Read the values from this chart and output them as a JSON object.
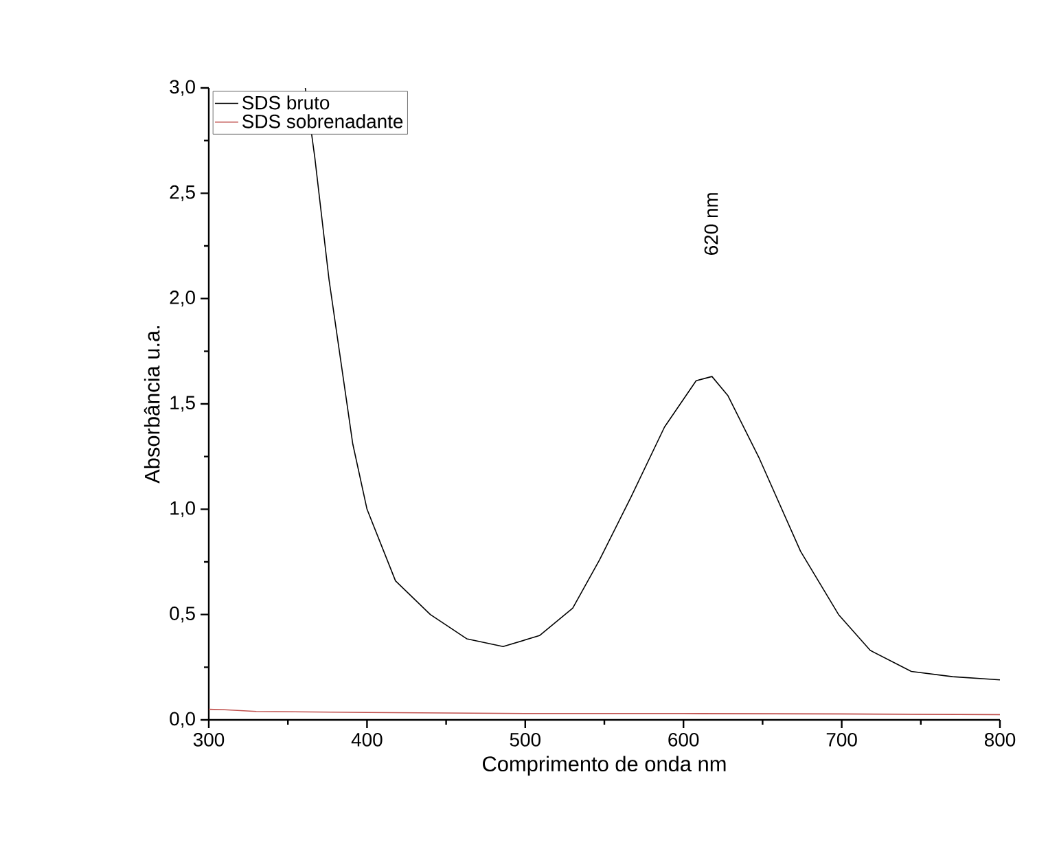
{
  "chart_data": {
    "type": "line",
    "xlabel": "Comprimento de onda  nm",
    "ylabel": "Absorbância  u.a.",
    "xlim": [
      300,
      800
    ],
    "xticks": [
      300,
      400,
      500,
      600,
      700,
      800
    ],
    "ylim": [
      0,
      3.0
    ],
    "yticks": [
      {
        "value": 0,
        "label": "0,0"
      },
      {
        "value": 0.5,
        "label": "0,5"
      },
      {
        "value": 1.0,
        "label": "1,0"
      },
      {
        "value": 1.5,
        "label": "1,5"
      },
      {
        "value": 2.0,
        "label": "2,0"
      },
      {
        "value": 2.5,
        "label": "2,5"
      },
      {
        "value": 3.0,
        "label": "3,0"
      }
    ],
    "legend": "top left",
    "grid": false,
    "marker": "none",
    "line_style": "solid",
    "annotations": [
      "620 nm"
    ],
    "series": [
      {
        "name": "SDS bruto",
        "color": "#000000",
        "x": [
          361,
          367,
          376,
          391,
          400,
          418,
          440,
          463,
          486,
          509,
          530,
          547,
          567,
          588,
          608,
          618,
          628,
          648,
          674,
          698,
          718,
          744,
          770,
          800
        ],
        "values": [
          3.0,
          2.67,
          2.09,
          1.31,
          1.0,
          0.66,
          0.5,
          0.385,
          0.348,
          0.4,
          0.53,
          0.76,
          1.06,
          1.39,
          1.61,
          1.63,
          1.54,
          1.24,
          0.8,
          0.5,
          0.33,
          0.23,
          0.205,
          0.19
        ]
      },
      {
        "name": "SDS sobrenadante",
        "color": "#c0504d",
        "x": [
          300,
          310,
          330,
          400,
          500,
          600,
          700,
          800
        ],
        "values": [
          0.05,
          0.048,
          0.04,
          0.035,
          0.03,
          0.03,
          0.028,
          0.025
        ]
      }
    ]
  }
}
